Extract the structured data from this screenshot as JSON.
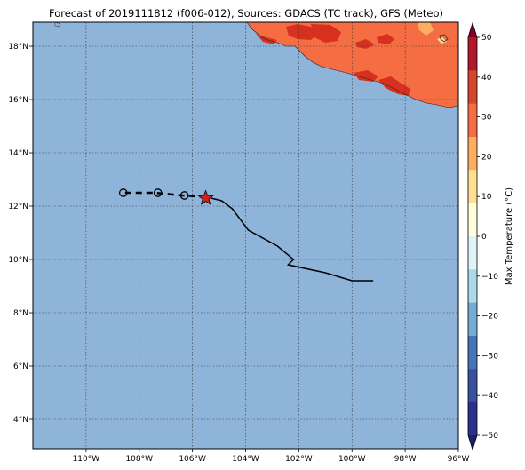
{
  "title": "Forecast of 2019111812 (f006-012), Sources: GDACS (TC track), GFS (Meteo)",
  "map": {
    "lon_range": [
      -112,
      -96
    ],
    "lat_range": [
      2.9,
      18.9
    ],
    "ocean_color": "#8fb4d9",
    "grid": true,
    "x_ticks": [
      {
        "value": -110,
        "label": "110°W"
      },
      {
        "value": -108,
        "label": "108°W"
      },
      {
        "value": -106,
        "label": "106°W"
      },
      {
        "value": -104,
        "label": "104°W"
      },
      {
        "value": -102,
        "label": "102°W"
      },
      {
        "value": -100,
        "label": "100°W"
      },
      {
        "value": -98,
        "label": "98°W"
      },
      {
        "value": -96,
        "label": "96°W"
      }
    ],
    "y_ticks": [
      {
        "value": 4,
        "label": "4°N"
      },
      {
        "value": 6,
        "label": "6°N"
      },
      {
        "value": 8,
        "label": "8°N"
      },
      {
        "value": 10,
        "label": "10°N"
      },
      {
        "value": 12,
        "label": "12°N"
      },
      {
        "value": 14,
        "label": "14°N"
      },
      {
        "value": 16,
        "label": "16°N"
      },
      {
        "value": 18,
        "label": "18°N"
      }
    ]
  },
  "track": {
    "past_track": [
      [
        -99.2,
        9.2
      ],
      [
        -100.0,
        9.2
      ],
      [
        -101.0,
        9.5
      ],
      [
        -102.4,
        9.8
      ],
      [
        -102.2,
        10.0
      ],
      [
        -102.8,
        10.5
      ],
      [
        -103.9,
        11.1
      ],
      [
        -104.5,
        11.9
      ],
      [
        -104.9,
        12.2
      ],
      [
        -105.3,
        12.3
      ]
    ],
    "current_position": [
      -105.5,
      12.3
    ],
    "forecast_track": [
      [
        -105.5,
        12.35
      ],
      [
        -106.4,
        12.4
      ],
      [
        -107.4,
        12.5
      ],
      [
        -108.7,
        12.5
      ]
    ],
    "forecast_points": [
      [
        -106.3,
        12.4
      ],
      [
        -107.3,
        12.5
      ],
      [
        -108.6,
        12.5
      ]
    ],
    "star_color": "#d62020"
  },
  "colorbar": {
    "label": "Max Temperature (°C)",
    "ticks": [
      50,
      40,
      30,
      20,
      10,
      0,
      -10,
      -20,
      -30,
      -40,
      -50
    ],
    "tick_labels": [
      "50",
      "40",
      "30",
      "20",
      "10",
      "0",
      "−10",
      "−20",
      "−30",
      "−40",
      "−50"
    ],
    "colors_top_to_bottom": [
      "#800026",
      "#b2182b",
      "#d6452d",
      "#f46d43",
      "#fdae61",
      "#fee090",
      "#ffffd9",
      "#e0f3f8",
      "#abd9e9",
      "#74add1",
      "#4575b4",
      "#3a4fa0",
      "#2c2f8c",
      "#1b1f6e"
    ]
  },
  "land": {
    "main_color": "#f46d43",
    "hot_color": "#d7301f",
    "warm_color": "#fdae61",
    "pale_color": "#fee090"
  }
}
